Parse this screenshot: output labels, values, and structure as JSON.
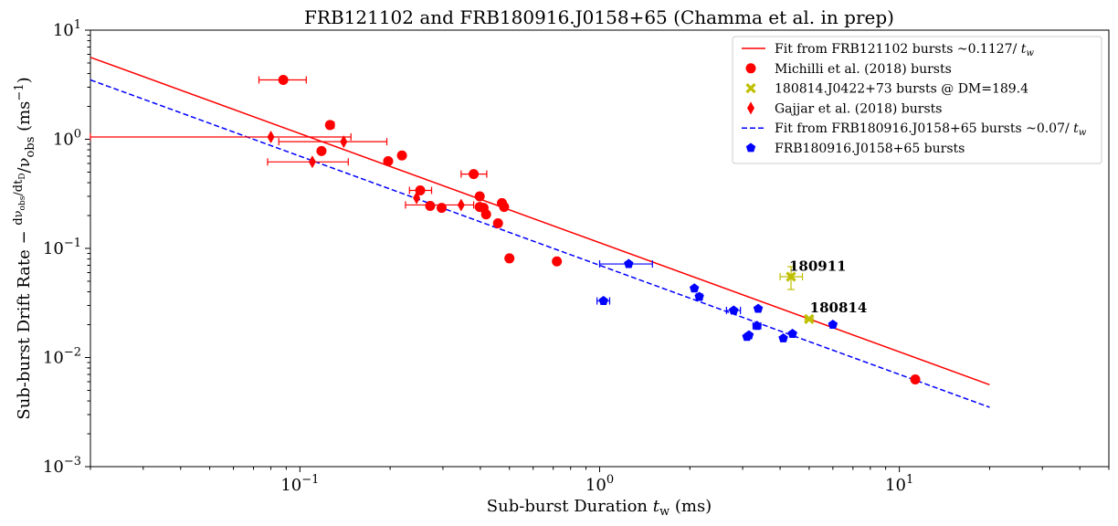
{
  "chart_data": {
    "type": "scatter",
    "title": "FRB121102 and FRB180916.J0158+65 (Chamma et al. in prep)",
    "xlabel": "Sub-burst Duration t_w (ms)",
    "ylabel": "Sub-burst Drift Rate −(dν_obs/dt_D)/ν_obs (ms⁻¹)",
    "x_scale": "log",
    "y_scale": "log",
    "xlim": [
      0.02,
      50
    ],
    "ylim": [
      0.001,
      10
    ],
    "x_ticks": [
      {
        "value": 0.1,
        "label": "10",
        "exp": "−1"
      },
      {
        "value": 1,
        "label": "10",
        "exp": "0"
      },
      {
        "value": 10,
        "label": "10",
        "exp": "1"
      }
    ],
    "y_ticks": [
      {
        "value": 0.001,
        "label": "10",
        "exp": "−3"
      },
      {
        "value": 0.01,
        "label": "10",
        "exp": "−2"
      },
      {
        "value": 0.1,
        "label": "10",
        "exp": "−1"
      },
      {
        "value": 1,
        "label": "10",
        "exp": "0"
      },
      {
        "value": 10,
        "label": "10",
        "exp": "1"
      }
    ],
    "grid": false,
    "legend_position": "top-right",
    "series": [
      {
        "name": "Fit from FRB121102 bursts ~0.1127/ t_w",
        "kind": "line",
        "color": "#ff0000",
        "dash": "solid",
        "points": [
          [
            0.02,
            5.635
          ],
          [
            20,
            0.005635
          ]
        ]
      },
      {
        "name": "Michilli et al. (2018) bursts",
        "kind": "scatter",
        "marker": "circle",
        "color": "#ff0000",
        "points": [
          {
            "x": 0.088,
            "y": 3.5,
            "xerr": [
              0.073,
              0.105
            ]
          },
          {
            "x": 0.118,
            "y": 0.78
          },
          {
            "x": 0.126,
            "y": 1.35,
            "xerr": [
              0.123,
              0.13
            ]
          },
          {
            "x": 0.197,
            "y": 0.63
          },
          {
            "x": 0.219,
            "y": 0.71,
            "xerr": [
              0.214,
              0.224
            ]
          },
          {
            "x": 0.252,
            "y": 0.34,
            "xerr": [
              0.232,
              0.275
            ]
          },
          {
            "x": 0.272,
            "y": 0.245
          },
          {
            "x": 0.297,
            "y": 0.235
          },
          {
            "x": 0.38,
            "y": 0.48,
            "xerr": [
              0.345,
              0.42
            ]
          },
          {
            "x": 0.398,
            "y": 0.3,
            "xerr": [
              0.39,
              0.405
            ]
          },
          {
            "x": 0.398,
            "y": 0.24
          },
          {
            "x": 0.41,
            "y": 0.235
          },
          {
            "x": 0.418,
            "y": 0.205
          },
          {
            "x": 0.458,
            "y": 0.17
          },
          {
            "x": 0.472,
            "y": 0.26
          },
          {
            "x": 0.48,
            "y": 0.24
          },
          {
            "x": 0.5,
            "y": 0.081
          },
          {
            "x": 0.72,
            "y": 0.076
          },
          {
            "x": 11.3,
            "y": 0.0063
          }
        ]
      },
      {
        "name": "180814.J0422+73 bursts @ DM=189.4",
        "kind": "scatter",
        "marker": "x",
        "color": "#bfbf00",
        "points": [
          {
            "x": 4.35,
            "y": 0.055,
            "xerr": [
              4.0,
              4.75
            ],
            "yerr": [
              0.042,
              0.068
            ]
          },
          {
            "x": 5.0,
            "y": 0.0225,
            "xerr": [
              4.85,
              5.15
            ]
          }
        ]
      },
      {
        "name": "Gajjar et al. (2018) bursts",
        "kind": "scatter",
        "marker": "diamond",
        "color": "#ff0000",
        "points": [
          {
            "x": 0.08,
            "y": 1.05,
            "xerr": [
              0.02,
              0.148
            ]
          },
          {
            "x": 0.11,
            "y": 0.62,
            "xerr": [
              0.078,
              0.145
            ]
          },
          {
            "x": 0.14,
            "y": 0.95,
            "xerr": [
              0.085,
              0.195
            ]
          },
          {
            "x": 0.245,
            "y": 0.29
          },
          {
            "x": 0.345,
            "y": 0.25,
            "xerr": [
              0.225,
              0.38
            ]
          }
        ]
      },
      {
        "name": "Fit from FRB180916.J0158+65 bursts ~0.07/ t_w",
        "kind": "line",
        "color": "#0000ff",
        "dash": "dashed",
        "points": [
          [
            0.02,
            3.5
          ],
          [
            20,
            0.0035
          ]
        ]
      },
      {
        "name": "FRB180916.J0158+65 bursts",
        "kind": "scatter",
        "marker": "pentagon",
        "color": "#0000ff",
        "points": [
          {
            "x": 1.03,
            "y": 0.033,
            "xerr": [
              0.98,
              1.08
            ]
          },
          {
            "x": 1.25,
            "y": 0.072,
            "xerr": [
              1.0,
              1.5
            ]
          },
          {
            "x": 2.07,
            "y": 0.043
          },
          {
            "x": 2.15,
            "y": 0.036,
            "xerr": [
              2.1,
              2.2
            ]
          },
          {
            "x": 2.8,
            "y": 0.027,
            "xerr": [
              2.65,
              2.95
            ]
          },
          {
            "x": 3.1,
            "y": 0.0155
          },
          {
            "x": 3.15,
            "y": 0.016
          },
          {
            "x": 3.35,
            "y": 0.0195,
            "xerr": [
              3.25,
              3.45
            ]
          },
          {
            "x": 3.38,
            "y": 0.028
          },
          {
            "x": 4.1,
            "y": 0.015
          },
          {
            "x": 4.4,
            "y": 0.0165
          },
          {
            "x": 6.0,
            "y": 0.02
          }
        ]
      }
    ],
    "annotations": [
      {
        "text": "180911",
        "x": 4.35,
        "y": 0.058
      },
      {
        "text": "180814",
        "x": 5.1,
        "y": 0.024
      }
    ]
  }
}
